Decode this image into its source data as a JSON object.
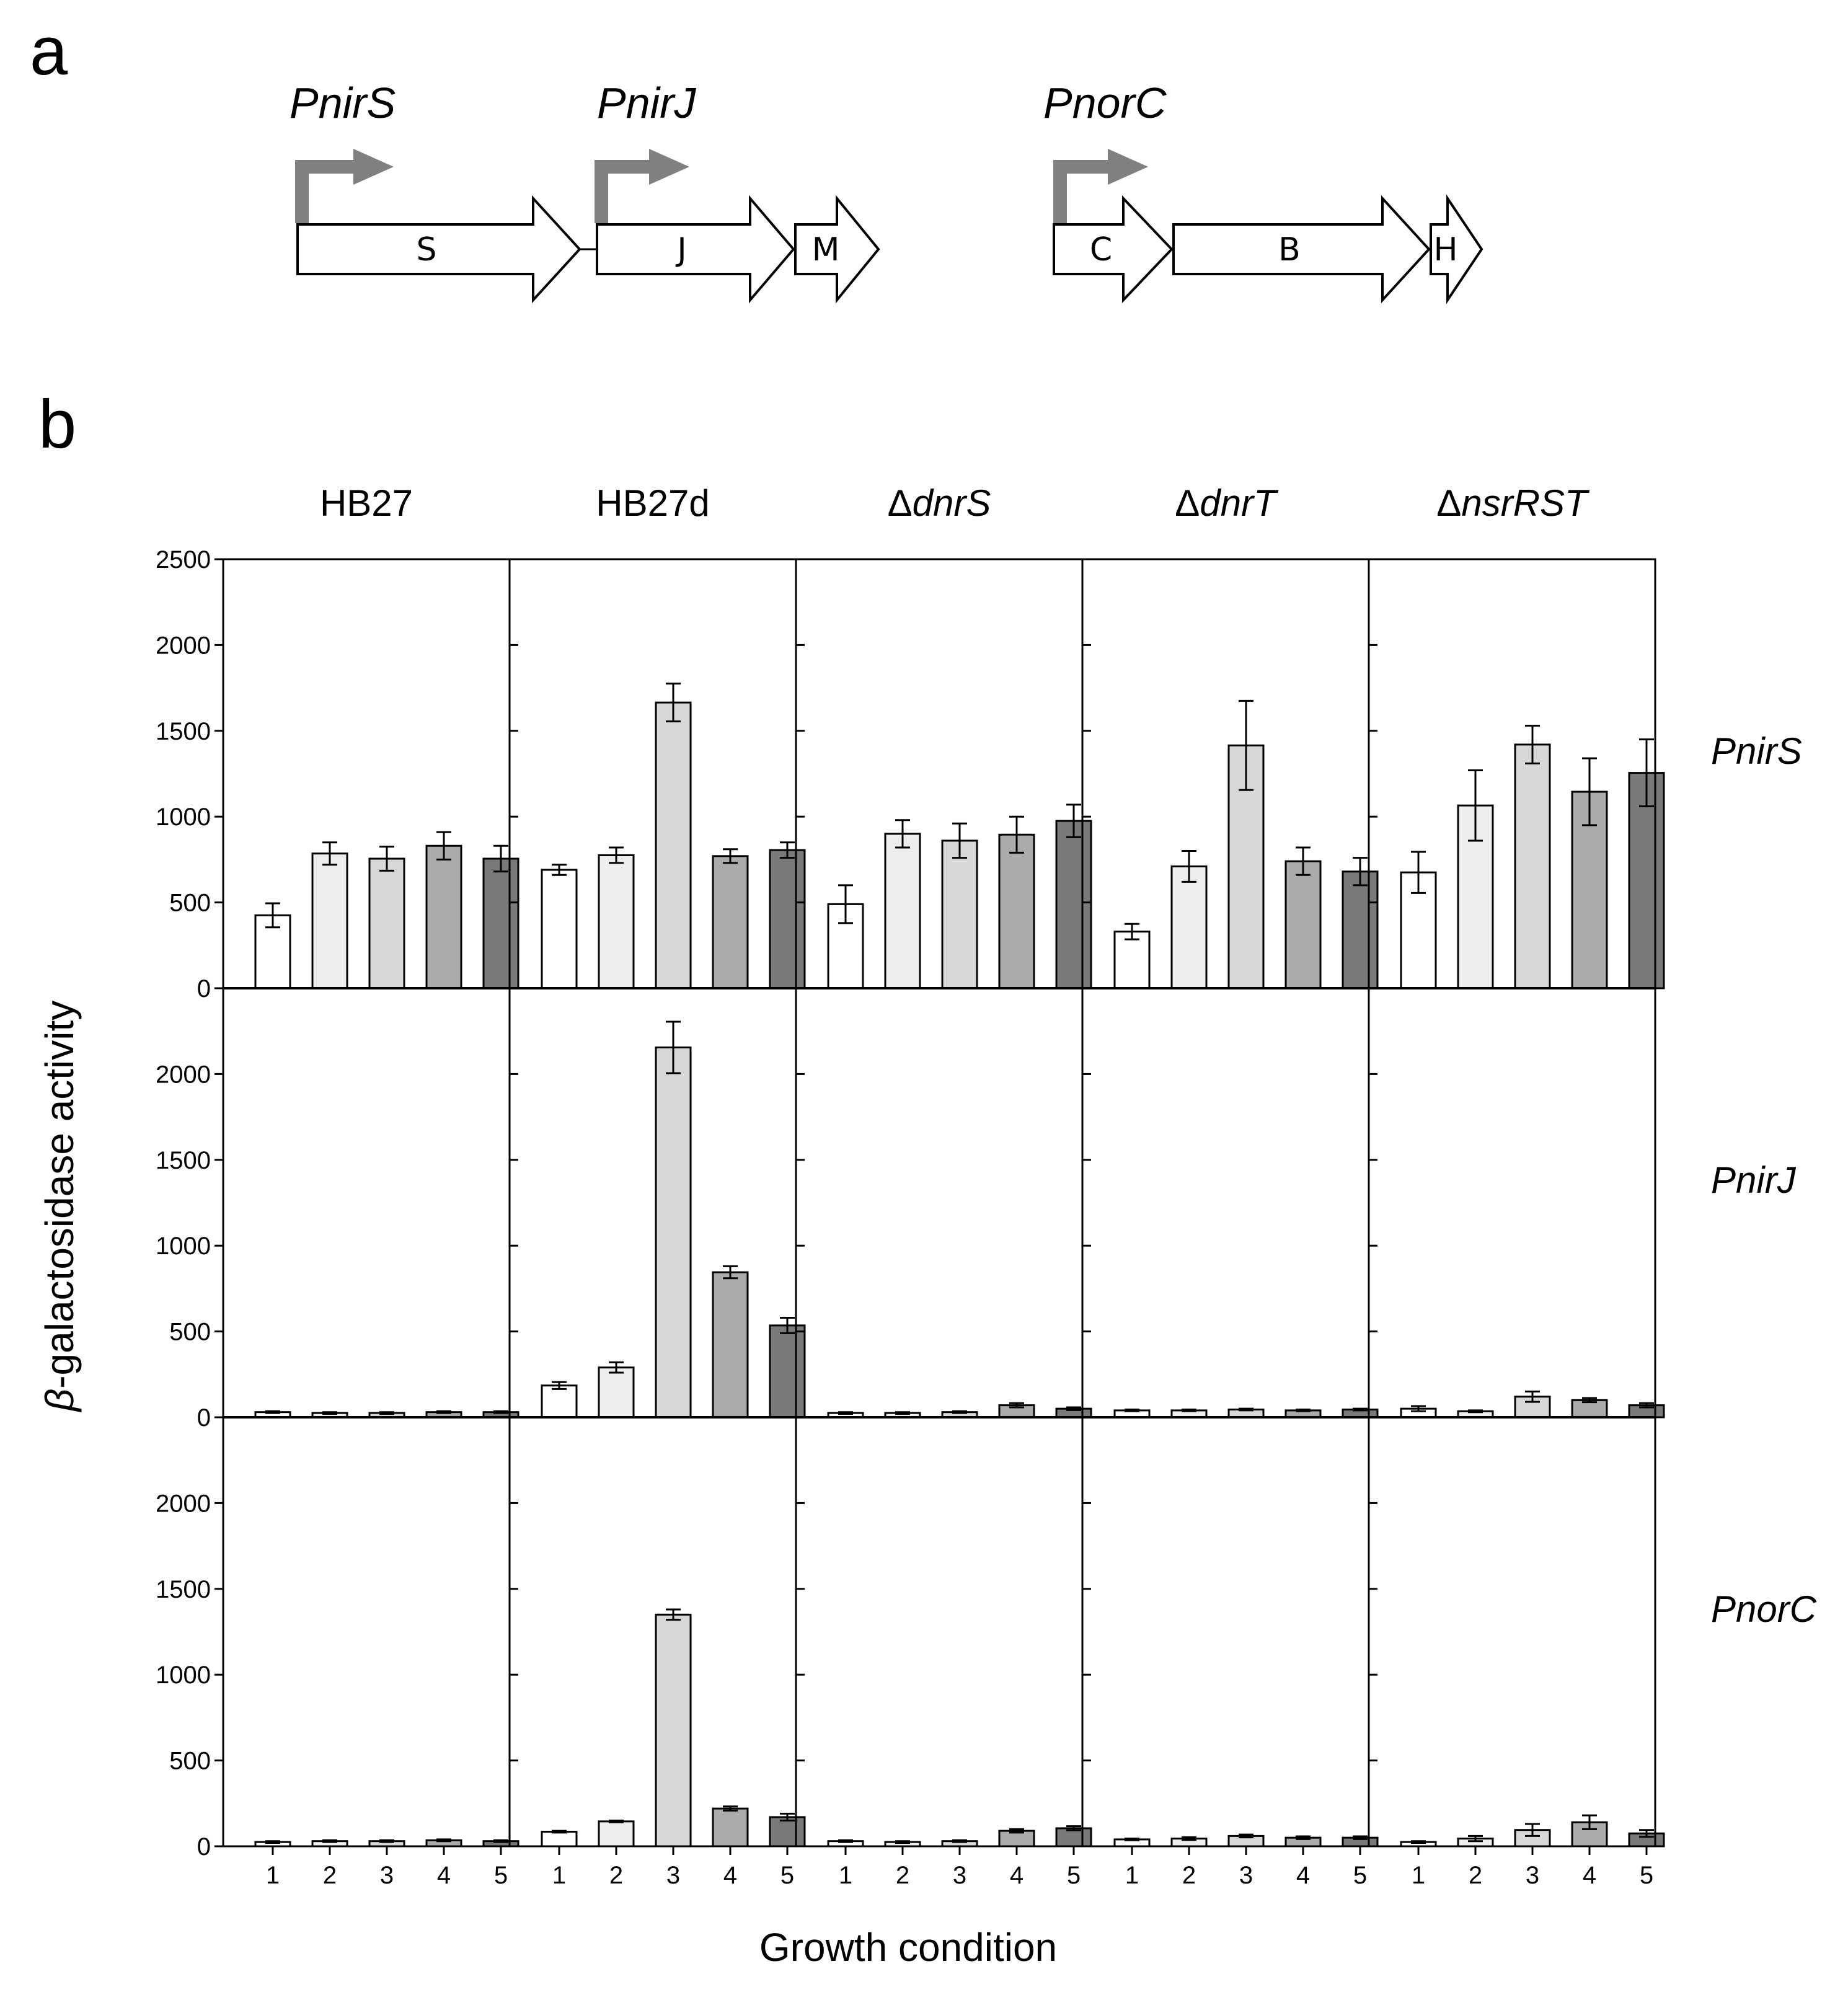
{
  "panels": {
    "a": "a",
    "b": "b"
  },
  "operon": {
    "promoters": [
      "PnirS",
      "PnirJ",
      "PnorC"
    ],
    "genes": [
      "S",
      "J",
      "M",
      "C",
      "B",
      "H"
    ],
    "colors": {
      "promoter_arrow": "#808080",
      "gene_fill": "#ffffff",
      "gene_stroke": "#000000"
    }
  },
  "chart_data": {
    "type": "bar",
    "ylabel_prefix": "β",
    "ylabel": "-galactosidase activity",
    "xlabel": "Growth condition",
    "categories": [
      "1",
      "2",
      "3",
      "4",
      "5"
    ],
    "strains": [
      {
        "prefix": "",
        "name": "HB27",
        "italic": false
      },
      {
        "prefix": "",
        "name": "HB27d",
        "italic": false
      },
      {
        "prefix": "Δ",
        "name": "dnrS",
        "italic": true
      },
      {
        "prefix": "Δ",
        "name": "dnrT",
        "italic": true
      },
      {
        "prefix": "Δ",
        "name": "nsrRST",
        "italic": true
      }
    ],
    "ylim": [
      0,
      2500
    ],
    "yticks_top": [
      0,
      500,
      1000,
      1500,
      2000,
      2500
    ],
    "yticks_lower": [
      0,
      500,
      1000,
      1500,
      2000
    ],
    "bar_colors": [
      "#ffffff",
      "#eeeeee",
      "#d8d8d8",
      "#ababab",
      "#7a7a7a"
    ],
    "rows": [
      {
        "promoter": "PnirS",
        "series": [
          {
            "strain": "HB27",
            "values": [
              425,
              785,
              755,
              830,
              755
            ],
            "errors": [
              70,
              65,
              70,
              80,
              75
            ]
          },
          {
            "strain": "HB27d",
            "values": [
              690,
              775,
              1665,
              770,
              805
            ],
            "errors": [
              30,
              45,
              110,
              40,
              45
            ]
          },
          {
            "strain": "dnrS",
            "values": [
              490,
              900,
              860,
              895,
              975
            ],
            "errors": [
              110,
              80,
              100,
              105,
              95
            ]
          },
          {
            "strain": "dnrT",
            "values": [
              330,
              710,
              1415,
              740,
              680
            ],
            "errors": [
              45,
              90,
              260,
              80,
              80
            ]
          },
          {
            "strain": "nsrRST",
            "values": [
              675,
              1065,
              1420,
              1145,
              1255
            ],
            "errors": [
              120,
              205,
              110,
              195,
              195
            ]
          }
        ]
      },
      {
        "promoter": "PnirJ",
        "series": [
          {
            "strain": "HB27",
            "values": [
              30,
              25,
              25,
              30,
              30
            ],
            "errors": [
              5,
              5,
              5,
              5,
              5
            ]
          },
          {
            "strain": "HB27d",
            "values": [
              185,
              290,
              2155,
              845,
              535
            ],
            "errors": [
              20,
              30,
              150,
              35,
              45
            ]
          },
          {
            "strain": "dnrS",
            "values": [
              25,
              25,
              30,
              70,
              50
            ],
            "errors": [
              5,
              5,
              5,
              12,
              8
            ]
          },
          {
            "strain": "dnrT",
            "values": [
              40,
              40,
              45,
              40,
              45
            ],
            "errors": [
              5,
              5,
              5,
              5,
              5
            ]
          },
          {
            "strain": "nsrRST",
            "values": [
              50,
              35,
              120,
              100,
              70
            ],
            "errors": [
              15,
              5,
              30,
              12,
              12
            ]
          }
        ]
      },
      {
        "promoter": "PnorC",
        "series": [
          {
            "strain": "HB27",
            "values": [
              25,
              30,
              30,
              35,
              30
            ],
            "errors": [
              5,
              5,
              5,
              5,
              5
            ]
          },
          {
            "strain": "HB27d",
            "values": [
              85,
              145,
              1350,
              220,
              170
            ],
            "errors": [
              5,
              5,
              30,
              12,
              20
            ]
          },
          {
            "strain": "dnrS",
            "values": [
              30,
              25,
              30,
              90,
              105
            ],
            "errors": [
              5,
              5,
              5,
              10,
              12
            ]
          },
          {
            "strain": "dnrT",
            "values": [
              40,
              45,
              60,
              50,
              50
            ],
            "errors": [
              5,
              8,
              8,
              8,
              8
            ]
          },
          {
            "strain": "nsrRST",
            "values": [
              25,
              45,
              95,
              140,
              75
            ],
            "errors": [
              5,
              15,
              35,
              40,
              20
            ]
          }
        ]
      }
    ]
  }
}
